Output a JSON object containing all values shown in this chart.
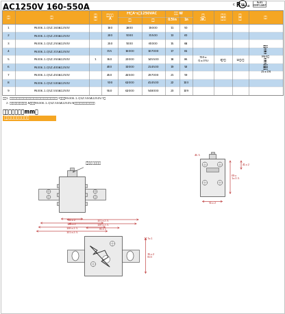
{
  "title": "AC1250V 160-550A",
  "header_bg": "#F5A623",
  "header_text": "#FFFFFF",
  "row_alt_bg": "#BDD7EE",
  "row_normal_bg": "#FFFFFF",
  "bg_color": "#FFFFFF",
  "draw_color": "#555555",
  "dim_color": "#C04040",
  "rows": [
    [
      1,
      "RS306-1-Q5Z-160A1250V",
      "",
      160,
      2800,
      19000,
      11,
      50
    ],
    [
      2,
      "RS306-1-Q5Z-200A1250V",
      "",
      200,
      5000,
      31500,
      13,
      60
    ],
    [
      3,
      "RS306-1-Q5Z-250A1250V",
      "",
      250,
      9000,
      60000,
      15,
      68
    ],
    [
      4,
      "RS306-1-Q5Z-315A1250V",
      "",
      315,
      16000,
      107000,
      17,
      81
    ],
    [
      5,
      "RS306-1-Q5Z-350A1250V",
      "1",
      350,
      22000,
      145500,
      18,
      86
    ],
    [
      6,
      "RS306-1-Q5Z-400A1250V",
      "",
      400,
      32000,
      214500,
      19,
      92
    ],
    [
      7,
      "RS306-1-Q5Z-450A1250V",
      "",
      450,
      44500,
      297000,
      21,
      99
    ],
    [
      8,
      "RS306-1-Q5Z-500A1250V",
      "",
      500,
      62000,
      414500,
      22,
      103
    ],
    [
      9,
      "RS306-1-Q5Z-550A1250V",
      "",
      550,
      62000,
      548000,
      23,
      109
    ]
  ],
  "note1": "注：1. 默认基座指示，如需端部（盖板上安装）可视指示器，型号后加-T，例：RS306-1-Q5Z-550A1250V-T；",
  "note2": "    2. 如无需指示，型号后加-N，例：RS306-1-Q5Z-550A1250V-N（无可视指示器与基座）；",
  "section_title": "产品外形尺寸（mm）",
  "subsection_title": "熔断件外形及安装尺寸",
  "subsection_bg": "#F5A623",
  "merged_weight": "710±\n(1±3%)",
  "merged_minpkg": "3只/盒",
  "merged_pkg": "12只/笱",
  "merged_note": "推荐安\n装方\n式：\nM10螺\n栓安\n装；\n推荐拧\n紧力：\n21±1N",
  "hdr_seq": "序号",
  "hdr_model": "型号",
  "hdr_size": "尺寸\n代码",
  "hdr_amp": "额定电流\nA",
  "hdr_i2t": "I²t（A²s）1250VAC",
  "hdr_melt": "燘前",
  "hdr_break": "燘断",
  "hdr_pw": "功耗 W",
  "hdr_05": "0.5In",
  "hdr_1n": "1n",
  "hdr_weight": "重量\n（g）",
  "hdr_minpkg": "最小包\n装数量",
  "hdr_pkg": "包装\n数量",
  "hdr_remark": "备注"
}
